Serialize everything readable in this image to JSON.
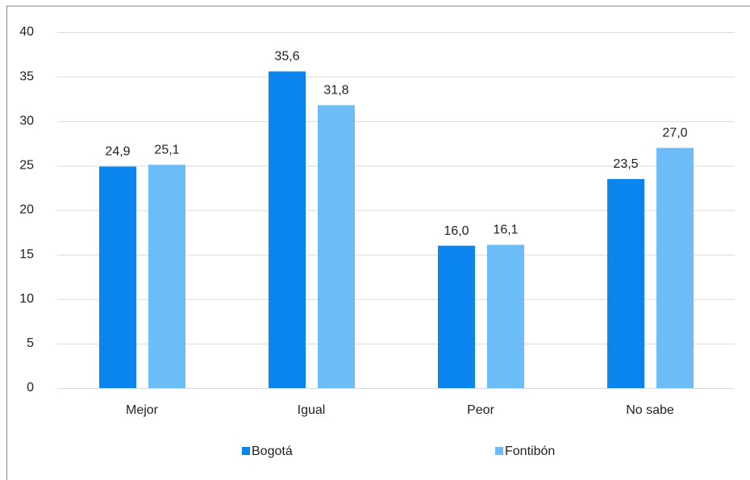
{
  "chart_data": {
    "type": "bar",
    "categories": [
      "Mejor",
      "Igual",
      "Peor",
      "No sabe"
    ],
    "series": [
      {
        "name": "Bogotá",
        "color": "#0a85ee",
        "values": [
          24.9,
          35.6,
          16.0,
          23.5
        ],
        "value_labels": [
          "24,9",
          "35,6",
          "16,0",
          "23,5"
        ]
      },
      {
        "name": "Fontibón",
        "color": "#6cbdf7",
        "values": [
          25.1,
          31.8,
          16.1,
          27.0
        ],
        "value_labels": [
          "25,1",
          "31,8",
          "16,1",
          "27,0"
        ]
      }
    ],
    "ylim": [
      0,
      40
    ],
    "yticks": [
      0,
      5,
      10,
      15,
      20,
      25,
      30,
      35,
      40
    ],
    "grid": true,
    "legend": "bottom"
  }
}
